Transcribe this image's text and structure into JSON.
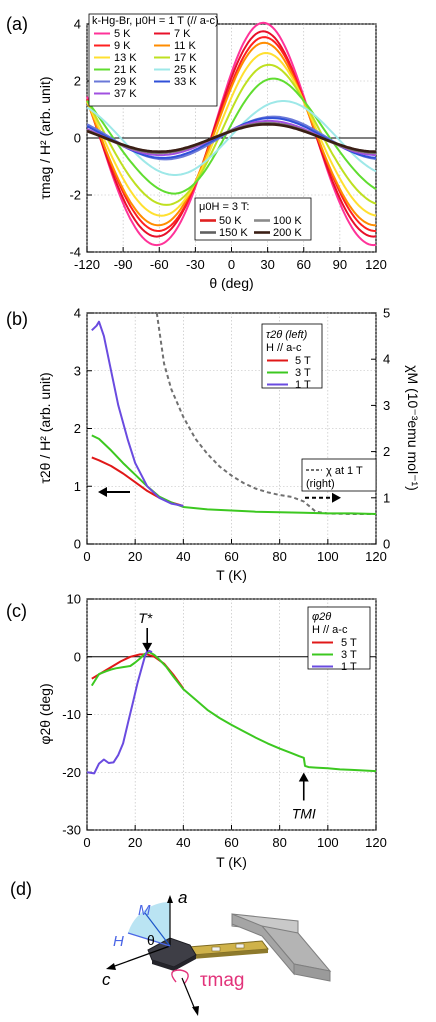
{
  "panels": {
    "a": "(a)",
    "b": "(b)",
    "c": "(c)",
    "d": "(d)"
  },
  "chart_data": [
    {
      "id": "a",
      "type": "line",
      "title": "",
      "xlabel": "θ (deg)",
      "ylabel": "τmag / H² (arb. unit)",
      "xlim": [
        -120,
        120
      ],
      "ylim": [
        -4,
        4
      ],
      "xticks": [
        -120,
        -90,
        -60,
        -30,
        0,
        30,
        60,
        90,
        120
      ],
      "yticks": [
        -4,
        -2,
        0,
        2,
        4
      ],
      "grid": true,
      "legend_title": "k-Hg-Br, μ0H = 1 T (// a-c)",
      "legend2_title": "μ0H = 3 T:",
      "series": [
        {
          "name": "5 K",
          "color": "#ff3399",
          "amp": 3.9,
          "peak": 27,
          "offset": 0.15
        },
        {
          "name": "7 K",
          "color": "#e8102a",
          "amp": 3.6,
          "peak": 27,
          "offset": 0.15
        },
        {
          "name": "9 K",
          "color": "#ff2020",
          "amp": 3.4,
          "peak": 28,
          "offset": 0.15
        },
        {
          "name": "11 K",
          "color": "#ff8c00",
          "amp": 3.2,
          "peak": 28,
          "offset": 0.15
        },
        {
          "name": "13 K",
          "color": "#ffe030",
          "amp": 2.85,
          "peak": 30,
          "offset": 0.15
        },
        {
          "name": "17 K",
          "color": "#bfe020",
          "amp": 2.45,
          "peak": 33,
          "offset": 0.15
        },
        {
          "name": "21 K",
          "color": "#60dd30",
          "amp": 2.0,
          "peak": 38,
          "offset": 0.15
        },
        {
          "name": "25 K",
          "color": "#9ee8e8",
          "amp": 1.3,
          "peak": 43,
          "offset": 0.0
        },
        {
          "name": "29 K",
          "color": "#6a78d8",
          "amp": 0.75,
          "peak": 35,
          "offset": 0.0
        },
        {
          "name": "33 K",
          "color": "#3050d8",
          "amp": 0.7,
          "peak": 33,
          "offset": 0.0
        },
        {
          "name": "37 K",
          "color": "#a050e0",
          "amp": 0.6,
          "peak": 31,
          "offset": 0.0
        },
        {
          "name": "50 K",
          "color": "#e02020",
          "amp": 0.52,
          "peak": 30,
          "offset": 0.0,
          "group": 2
        },
        {
          "name": "100 K",
          "color": "#8a8a8a",
          "amp": 0.52,
          "peak": 30,
          "offset": 0.0,
          "group": 2
        },
        {
          "name": "150 K",
          "color": "#606060",
          "amp": 0.5,
          "peak": 30,
          "offset": 0.0,
          "group": 2
        },
        {
          "name": "200 K",
          "color": "#3a1e14",
          "amp": 0.48,
          "peak": 30,
          "offset": 0.0,
          "group": 2
        }
      ]
    },
    {
      "id": "b",
      "type": "line",
      "xlabel": "T (K)",
      "ylabel": "τ2θ / H² (arb. unit)",
      "y2label": "χM (10⁻³emu mol⁻¹)",
      "xlim": [
        0,
        120
      ],
      "ylim": [
        0,
        4
      ],
      "y2lim": [
        0,
        5
      ],
      "xticks": [
        0,
        20,
        40,
        60,
        80,
        100,
        120
      ],
      "yticks": [
        0,
        1,
        2,
        3,
        4
      ],
      "y2ticks": [
        0,
        1,
        2,
        3,
        4,
        5
      ],
      "grid": true,
      "legend_title": "τ2θ (left)",
      "legend_subtitle": "H // a-c",
      "series": [
        {
          "name": "5 T",
          "color": "#e01818",
          "x": [
            2,
            5,
            10,
            15,
            20,
            25,
            30,
            35,
            40
          ],
          "y": [
            1.5,
            1.45,
            1.35,
            1.22,
            1.07,
            0.92,
            0.8,
            0.72,
            0.66
          ]
        },
        {
          "name": "3 T",
          "color": "#3cc820",
          "x": [
            2,
            5,
            10,
            15,
            20,
            25,
            30,
            35,
            40,
            50,
            60,
            70,
            80,
            90,
            100,
            110,
            120
          ],
          "y": [
            1.88,
            1.82,
            1.62,
            1.4,
            1.2,
            1.0,
            0.82,
            0.72,
            0.64,
            0.6,
            0.58,
            0.56,
            0.55,
            0.54,
            0.53,
            0.53,
            0.52
          ]
        },
        {
          "name": "1 T",
          "color": "#6a4be0",
          "x": [
            2,
            4,
            5,
            7,
            10,
            13,
            17,
            20,
            25,
            30,
            35,
            40
          ],
          "y": [
            3.7,
            3.78,
            3.85,
            3.6,
            3.0,
            2.4,
            1.8,
            1.4,
            1.0,
            0.8,
            0.7,
            0.66
          ]
        }
      ],
      "chi_series": {
        "name": "χ at 1 T",
        "note": "(right)",
        "color": "#707070",
        "x": [
          29,
          32,
          35,
          40,
          45,
          50,
          55,
          60,
          65,
          70,
          75,
          80,
          85,
          90,
          95,
          100,
          110,
          120
        ],
        "y": [
          5.0,
          3.9,
          3.35,
          2.75,
          2.28,
          1.95,
          1.68,
          1.48,
          1.32,
          1.2,
          1.12,
          1.06,
          1.02,
          0.92,
          0.7,
          0.66,
          0.65,
          0.65
        ]
      },
      "arrow_left_y": 0.9,
      "arrow_right_y": 1.0
    },
    {
      "id": "c",
      "type": "line",
      "xlabel": "T (K)",
      "ylabel": "φ2θ (deg)",
      "xlim": [
        0,
        120
      ],
      "ylim": [
        -30,
        10
      ],
      "xticks": [
        0,
        20,
        40,
        60,
        80,
        100,
        120
      ],
      "yticks": [
        -30,
        -20,
        -10,
        0,
        10
      ],
      "grid": true,
      "legend_title": "φ2θ",
      "legend_subtitle": "H // a-c",
      "annotations": [
        {
          "text": "T*",
          "x": 25,
          "y": 0.5
        },
        {
          "text": "TMI",
          "x": 90,
          "y": -19
        }
      ],
      "series": [
        {
          "name": "5 T",
          "color": "#e01818",
          "x": [
            2,
            6,
            10,
            14,
            18,
            22,
            25,
            28,
            32,
            36,
            40
          ],
          "y": [
            -3.8,
            -2.8,
            -1.8,
            -0.8,
            0.0,
            0.4,
            0.4,
            0.0,
            -1.2,
            -3.2,
            -5.5
          ]
        },
        {
          "name": "3 T",
          "color": "#3cc820",
          "x": [
            2,
            5,
            8,
            10,
            12,
            15,
            18,
            20,
            22,
            24,
            26,
            28,
            30,
            33,
            36,
            40,
            45,
            50,
            55,
            60,
            65,
            70,
            75,
            80,
            85,
            88,
            90,
            90.5,
            92,
            95,
            100,
            105,
            110,
            115,
            120
          ],
          "y": [
            -5.0,
            -3.0,
            -2.5,
            -2.2,
            -2.0,
            -1.8,
            -1.6,
            -1.0,
            -0.3,
            0.5,
            0.8,
            0.3,
            -0.5,
            -1.8,
            -3.5,
            -5.6,
            -7.4,
            -9.2,
            -10.6,
            -11.8,
            -12.9,
            -14.0,
            -15.0,
            -15.9,
            -16.7,
            -17.2,
            -17.5,
            -18.9,
            -19.1,
            -19.2,
            -19.3,
            -19.5,
            -19.6,
            -19.7,
            -19.8
          ]
        },
        {
          "name": "1 T",
          "color": "#6a4be0",
          "x": [
            0,
            3,
            5,
            7,
            9,
            11,
            13,
            15,
            17,
            19,
            21,
            23,
            24,
            25,
            26,
            27
          ],
          "y": [
            -20.0,
            -20.2,
            -18.5,
            -17.8,
            -18.4,
            -18.3,
            -17.0,
            -15.0,
            -11.5,
            -8.0,
            -4.5,
            -1.5,
            0.0,
            1.0,
            1.0,
            0.8
          ]
        }
      ]
    }
  ],
  "diagram": {
    "axis_a": "a",
    "axis_c": "c",
    "label_M": "M",
    "label_H": "H",
    "label_theta": "θ",
    "label_tau": "τmag"
  }
}
